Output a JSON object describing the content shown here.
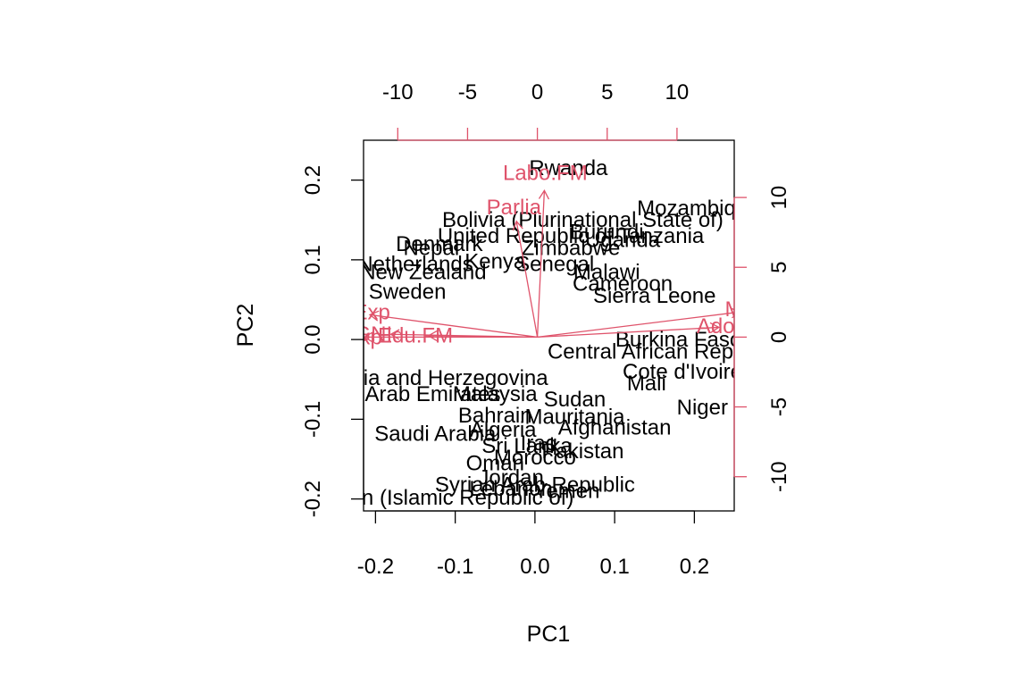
{
  "chart_data": {
    "type": "scatter",
    "title": "",
    "xlabel": "PC1",
    "ylabel": "PC2",
    "xlim": [
      -0.215,
      0.25
    ],
    "ylim": [
      -0.215,
      0.25
    ],
    "x_ticks": [
      "-0.2",
      "-0.1",
      "0.0",
      "0.1",
      "0.2"
    ],
    "x_tick_values": [
      -0.2,
      -0.1,
      0.0,
      0.1,
      0.2
    ],
    "y_ticks": [
      "-0.2",
      "-0.1",
      "0.0",
      "0.1",
      "0.2"
    ],
    "y_tick_values": [
      -0.2,
      -0.1,
      0.0,
      0.1,
      0.2
    ],
    "top_ticks": [
      "-10",
      "-5",
      "0",
      "5",
      "10"
    ],
    "top_tick_values": [
      -10,
      -5,
      0,
      5,
      10
    ],
    "right_ticks": [
      "-10",
      "-5",
      "0",
      "5",
      "10"
    ],
    "right_tick_values": [
      -10,
      -5,
      0,
      5,
      10
    ],
    "loading_scale": [
      -12.45,
      14.1
    ],
    "observations": [
      {
        "label": "Rwanda",
        "x": 0.042,
        "y": 0.215
      },
      {
        "label": "Mozambique",
        "x": 0.205,
        "y": 0.165
      },
      {
        "label": "Bolivia (Plurinational State of)",
        "x": 0.06,
        "y": 0.15
      },
      {
        "label": "Burundi",
        "x": 0.09,
        "y": 0.135
      },
      {
        "label": "United Republic of Tanzania",
        "x": 0.045,
        "y": 0.13
      },
      {
        "label": "Uganda",
        "x": 0.11,
        "y": 0.125
      },
      {
        "label": "Zimbabwe",
        "x": 0.045,
        "y": 0.115
      },
      {
        "label": "Nepal",
        "x": -0.13,
        "y": 0.115
      },
      {
        "label": "Denmark",
        "x": -0.12,
        "y": 0.12
      },
      {
        "label": "Netherlands",
        "x": -0.15,
        "y": 0.095
      },
      {
        "label": "New Zealand",
        "x": -0.14,
        "y": 0.085
      },
      {
        "label": "Kenya",
        "x": -0.05,
        "y": 0.098
      },
      {
        "label": "Senegal",
        "x": 0.025,
        "y": 0.095
      },
      {
        "label": "Malawi",
        "x": 0.09,
        "y": 0.085
      },
      {
        "label": "Cameroon",
        "x": 0.11,
        "y": 0.07
      },
      {
        "label": "Sweden",
        "x": -0.16,
        "y": 0.06
      },
      {
        "label": "Sierra Leone",
        "x": 0.15,
        "y": 0.055
      },
      {
        "label": "Burkina Faso",
        "x": 0.18,
        "y": 0.0
      },
      {
        "label": "Central African Republic",
        "x": 0.16,
        "y": -0.015
      },
      {
        "label": "Cote d'Ivoire",
        "x": 0.185,
        "y": -0.04
      },
      {
        "label": "Mali",
        "x": 0.14,
        "y": -0.055
      },
      {
        "label": "Niger",
        "x": 0.21,
        "y": -0.085
      },
      {
        "label": "Bosnia and Herzegovina",
        "x": -0.13,
        "y": -0.048
      },
      {
        "label": "United Arab Emirates",
        "x": -0.17,
        "y": -0.068
      },
      {
        "label": "Sudan",
        "x": 0.05,
        "y": -0.075
      },
      {
        "label": "Malaysia",
        "x": -0.05,
        "y": -0.068
      },
      {
        "label": "Bahrain",
        "x": -0.05,
        "y": -0.095
      },
      {
        "label": "Mauritania",
        "x": 0.05,
        "y": -0.097
      },
      {
        "label": "Afghanistan",
        "x": 0.1,
        "y": -0.11
      },
      {
        "label": "Saudi Arabia",
        "x": -0.125,
        "y": -0.118
      },
      {
        "label": "Algeria",
        "x": -0.04,
        "y": -0.113
      },
      {
        "label": "Pakistan",
        "x": 0.06,
        "y": -0.14
      },
      {
        "label": "Iraq",
        "x": 0.005,
        "y": -0.13
      },
      {
        "label": "Sri Lanka",
        "x": -0.01,
        "y": -0.133
      },
      {
        "label": "Oman",
        "x": -0.05,
        "y": -0.155
      },
      {
        "label": "Morocco",
        "x": 0.0,
        "y": -0.148
      },
      {
        "label": "Jordan",
        "x": -0.03,
        "y": -0.173
      },
      {
        "label": "Syrian Arab Republic",
        "x": 0.0,
        "y": -0.182
      },
      {
        "label": "Lebanon",
        "x": -0.03,
        "y": -0.187
      },
      {
        "label": "Yemen",
        "x": 0.04,
        "y": -0.19
      },
      {
        "label": "Iran (Islamic Republic of)",
        "x": -0.1,
        "y": -0.198
      }
    ],
    "loadings": [
      {
        "label": "Labo.FM",
        "x": 0.5,
        "y": 10.5
      },
      {
        "label": "Parlia",
        "x": -1.5,
        "y": 8.3
      },
      {
        "label": "Mat.Mor",
        "x": 14.5,
        "y": 1.8
      },
      {
        "label": "Ado.Birth",
        "x": 13.0,
        "y": 0.7
      },
      {
        "label": "Edu.Exp",
        "x": -12.0,
        "y": 1.6
      },
      {
        "label": "Life.Exp",
        "x": -12.4,
        "y": 0.0
      },
      {
        "label": "GNI",
        "x": -10.5,
        "y": 0.2
      },
      {
        "label": "Edu.FM",
        "x": -7.8,
        "y": 0.1
      }
    ]
  }
}
